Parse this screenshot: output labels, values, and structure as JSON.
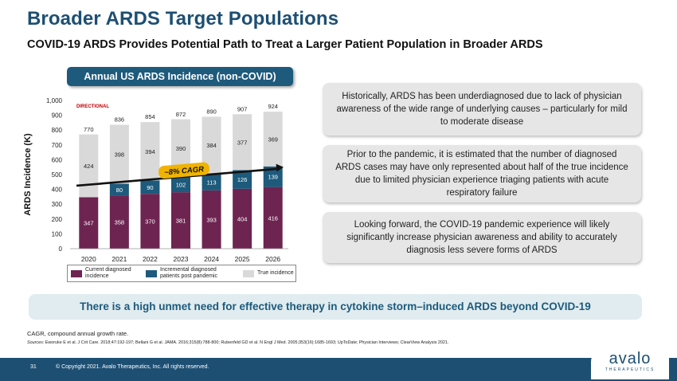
{
  "header": {
    "title": "Broader ARDS Target Populations",
    "subtitle": "COVID-19 ARDS Provides Potential Path to Treat a Larger Patient Population in Broader ARDS"
  },
  "chart_pill": "Annual US ARDS Incidence (non-COVID)",
  "chart_data": {
    "type": "bar",
    "stacked": true,
    "title": "Annual US ARDS Incidence (non-COVID)",
    "ylabel": "ARDS Incidence (K)",
    "xlabel": "",
    "ylim": [
      0,
      1000
    ],
    "yticks": [
      "0",
      "100",
      "200",
      "300",
      "400",
      "500",
      "600",
      "700",
      "800",
      "900",
      "1,000"
    ],
    "categories": [
      "2020",
      "2021",
      "2022",
      "2023",
      "2024",
      "2025",
      "2026"
    ],
    "series": [
      {
        "name": "Current diagnosed incidence",
        "values": [
          347,
          358,
          370,
          381,
          393,
          404,
          416
        ],
        "color": "#6e2451"
      },
      {
        "name": "Incremental diagnosed patients post pandemic",
        "values": [
          0,
          80,
          90,
          102,
          113,
          126,
          139
        ],
        "color": "#1d5a7c"
      },
      {
        "name": "True incidence",
        "values": [
          424,
          398,
          394,
          390,
          384,
          377,
          369
        ],
        "color": "#d9d9d9"
      }
    ],
    "segment_labels": [
      [
        "347",
        "358",
        "370",
        "381",
        "393",
        "404",
        "416"
      ],
      [
        "",
        "80",
        "90",
        "102",
        "113",
        "126",
        "139"
      ],
      [
        "424",
        "398",
        "394",
        "390",
        "384",
        "377",
        "369"
      ]
    ],
    "totals": [
      770,
      836,
      854,
      872,
      890,
      907,
      924
    ],
    "total_labels": [
      "770",
      "836",
      "854",
      "872",
      "890",
      "907",
      "924"
    ],
    "annotations": {
      "directional": "DIRECTIONAL",
      "cagr": "~8% CAGR"
    },
    "trend_line": {
      "from": 425,
      "to": 550,
      "color": "#111111"
    },
    "grid": false,
    "legend_position": "bottom"
  },
  "legend": {
    "current": "Current diagnosed incidence",
    "incremental": "Incremental diagnosed patients post pandemic",
    "true": "True incidence"
  },
  "boxes": {
    "b1": "Historically, ARDS has been underdiagnosed due to lack of physician awareness of the wide range of underlying causes – particularly for mild to moderate disease",
    "b2": "Prior to the pandemic, it is estimated that the number of diagnosed ARDS cases may have only represented about half of the true incidence due to limited physician experience triaging patients with acute respiratory failure",
    "b3": "Looking forward, the COVID-19 pandemic experience will likely significantly increase physician awareness and ability to accurately diagnosis less severe forms of ARDS"
  },
  "banner": "There is a high unmet need for effective therapy in cytokine storm–induced ARDS beyond COVID-19",
  "notes": {
    "abbrev": "CAGR, compound annual growth rate.",
    "sources_label": "Sources:",
    "sources_text": " Eworuke E et al. J Crit Care. 2018;47:192-197; Bellani G et al. JAMA. 2016;315(8):788-800; Rubenfeld GD et al. N Engl J Med. 2005;353(16):1685-1693; UpToDate; Physician Interviews; ClearView Analysis 2021."
  },
  "footer": {
    "page_number": "31",
    "copyright": "© Copyright 2021. Avalo Therapeutics, Inc. All rights reserved.",
    "logo_word": "avalo",
    "logo_sub": "THERAPEUTICS"
  },
  "colors": {
    "brand_navy": "#1d4f73",
    "teal": "#1d5a7c",
    "plum": "#6e2451",
    "grey": "#d9d9d9",
    "cagr_gold": "#f0b400",
    "directional_red": "#c00000"
  }
}
